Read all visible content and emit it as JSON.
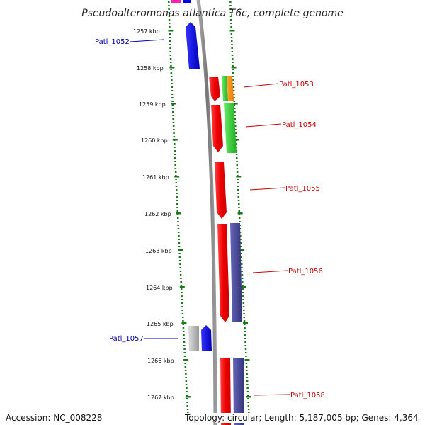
{
  "title": "Pseudoalteromonas atlantica T6c, complete genome",
  "footer": {
    "accession": "Accession: NC_008228",
    "topology": "Topology: circular; Length: 5,187,005 bp; Genes: 4,364"
  },
  "ticks": [
    "1257 kbp",
    "1258 kbp",
    "1259 kbp",
    "1260 kbp",
    "1261 kbp",
    "1262 kbp",
    "1263 kbp",
    "1264 kbp",
    "1265 kbp",
    "1266 kbp",
    "1267 kbp"
  ],
  "genes": [
    {
      "label": "Patl_1052",
      "color": "#0000aa"
    },
    {
      "label": "Patl_1053",
      "color": "#cc0000"
    },
    {
      "label": "Patl_1054",
      "color": "#cc0000"
    },
    {
      "label": "Patl_1055",
      "color": "#cc0000"
    },
    {
      "label": "Patl_1056",
      "color": "#cc0000"
    },
    {
      "label": "Patl_1057",
      "color": "#0000aa"
    },
    {
      "label": "Patl_1058",
      "color": "#cc0000"
    }
  ],
  "colors": {
    "tick": "#1a7a1a",
    "backbone": "#888888",
    "red_feature": "#ee1111",
    "green_feature": "#33cc33",
    "orange_feature": "#ff8800",
    "purple_feature": "#4a4a99",
    "blue_feature": "#0000ee",
    "grey_feature": "#bbbbbb",
    "magenta_feature": "#ff22aa"
  }
}
